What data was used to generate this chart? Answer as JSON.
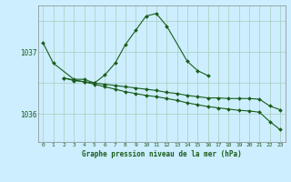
{
  "title": "Graphe pression niveau de la mer (hPa)",
  "background_color": "#cceeff",
  "grid_color": "#aaccbb",
  "line_color": "#1a5c1a",
  "x_labels": [
    "0",
    "1",
    "2",
    "3",
    "4",
    "5",
    "6",
    "7",
    "8",
    "9",
    "10",
    "11",
    "12",
    "13",
    "14",
    "15",
    "16",
    "17",
    "18",
    "19",
    "20",
    "21",
    "22",
    "23"
  ],
  "ylim": [
    1035.55,
    1037.75
  ],
  "yticks": [
    1036,
    1037
  ],
  "line1_x": [
    0,
    1,
    3,
    4,
    5,
    6,
    7,
    8,
    9,
    10,
    11,
    12,
    14,
    15,
    16
  ],
  "line1_y": [
    1037.15,
    1036.82,
    1036.56,
    1036.56,
    1036.5,
    1036.63,
    1036.82,
    1037.12,
    1037.35,
    1037.58,
    1037.62,
    1037.42,
    1036.85,
    1036.7,
    1036.62
  ],
  "line2_x": [
    2,
    3,
    4,
    5,
    6,
    7,
    8,
    9,
    10,
    11,
    12,
    13,
    14,
    15,
    16,
    17,
    18,
    19,
    20,
    21,
    22,
    23
  ],
  "line2_y": [
    1036.58,
    1036.55,
    1036.52,
    1036.48,
    1036.44,
    1036.4,
    1036.36,
    1036.33,
    1036.3,
    1036.28,
    1036.25,
    1036.22,
    1036.18,
    1036.15,
    1036.12,
    1036.1,
    1036.08,
    1036.06,
    1036.05,
    1036.03,
    1035.88,
    1035.75
  ],
  "line3_x": [
    2,
    3,
    4,
    5,
    6,
    7,
    8,
    9,
    10,
    11,
    12,
    13,
    14,
    15,
    16,
    17,
    18,
    19,
    20,
    21,
    22,
    23
  ],
  "line3_y": [
    1036.58,
    1036.54,
    1036.52,
    1036.5,
    1036.48,
    1036.46,
    1036.44,
    1036.42,
    1036.4,
    1036.38,
    1036.35,
    1036.33,
    1036.3,
    1036.28,
    1036.26,
    1036.26,
    1036.25,
    1036.25,
    1036.25,
    1036.24,
    1036.13,
    1036.07
  ]
}
